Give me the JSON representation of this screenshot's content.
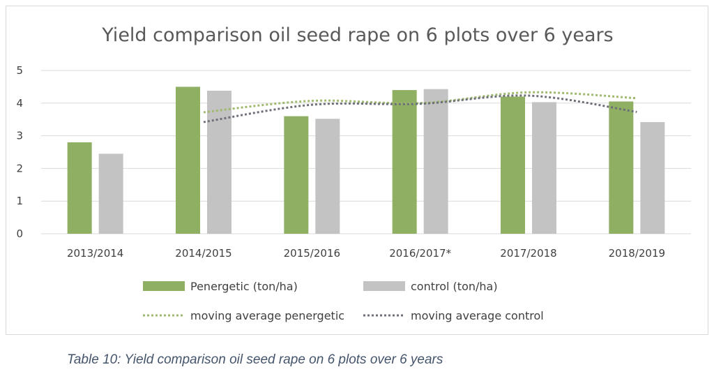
{
  "chart_data": {
    "type": "bar",
    "title": "Yield comparison oil seed rape on 6 plots over 6 years",
    "xlabel": "",
    "ylabel": "",
    "categories": [
      "2013/2014",
      "2014/2015",
      "2015/2016",
      "2016/2017*",
      "2017/2018",
      "2018/2019"
    ],
    "series": [
      {
        "name": "Penergetic (ton/ha)",
        "kind": "bar",
        "color": "#8faf63",
        "values": [
          2.8,
          4.5,
          3.6,
          4.4,
          4.2,
          4.05
        ]
      },
      {
        "name": "control (ton/ha)",
        "kind": "bar",
        "color": "#c3c3c3",
        "values": [
          2.45,
          4.38,
          3.52,
          4.43,
          4.03,
          3.42
        ]
      }
    ],
    "trendlines": [
      {
        "name": "moving average penergetic",
        "style": "dotted",
        "color": "#9fba6e",
        "x": [
          "2014/2015",
          "2015/2016",
          "2016/2017*",
          "2017/2018",
          "2018/2019"
        ],
        "values": [
          3.72,
          4.07,
          4.0,
          4.33,
          4.15
        ]
      },
      {
        "name": "moving average control",
        "style": "dotted",
        "color": "#6e7079",
        "x": [
          "2014/2015",
          "2015/2016",
          "2016/2017*",
          "2017/2018",
          "2018/2019"
        ],
        "values": [
          3.42,
          3.95,
          3.98,
          4.23,
          3.73
        ]
      }
    ],
    "yticks": [
      0,
      1,
      2,
      3,
      4,
      5
    ],
    "ylim": [
      0,
      5
    ],
    "grid": true,
    "legend_position": "bottom"
  },
  "caption": "Table 10: Yield comparison oil seed rape on 6 plots over 6 years"
}
